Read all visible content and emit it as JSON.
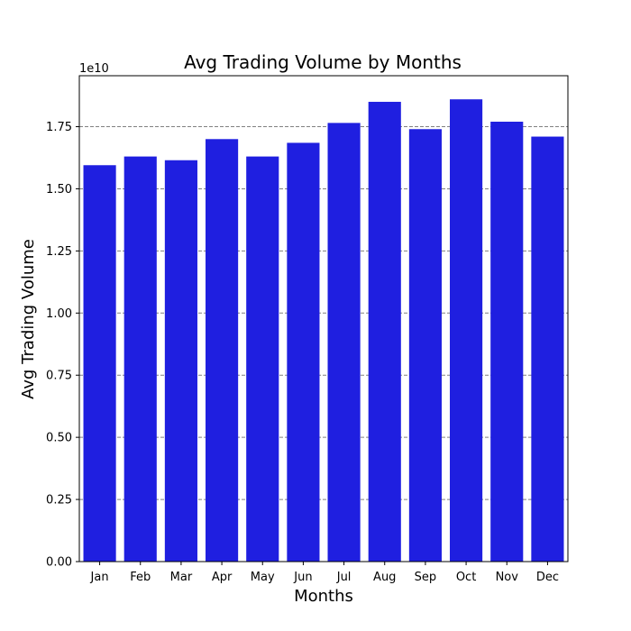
{
  "chart_data": {
    "type": "bar",
    "title": "Avg Trading Volume by Months",
    "xlabel": "Months",
    "ylabel": "Avg Trading Volume",
    "offset_label": "1e10",
    "categories": [
      "Jan",
      "Feb",
      "Mar",
      "Apr",
      "May",
      "Jun",
      "Jul",
      "Aug",
      "Sep",
      "Oct",
      "Nov",
      "Dec"
    ],
    "values": [
      15950000000,
      16300000000,
      16150000000,
      17000000000,
      16300000000,
      16850000000,
      17650000000,
      18500000000,
      17400000000,
      18600000000,
      17700000000,
      17100000000
    ],
    "ylim": [
      0,
      19550000000
    ],
    "yticks": [
      0,
      2500000000,
      5000000000,
      7500000000,
      10000000000,
      12500000000,
      15000000000,
      17500000000
    ],
    "ytick_labels": [
      "0.00",
      "0.25",
      "0.50",
      "0.75",
      "1.00",
      "1.25",
      "1.50",
      "1.75"
    ],
    "grid": "horizontal dashed",
    "bar_color": "#1f1fe0",
    "grid_color": "#808080",
    "legend": "none"
  }
}
